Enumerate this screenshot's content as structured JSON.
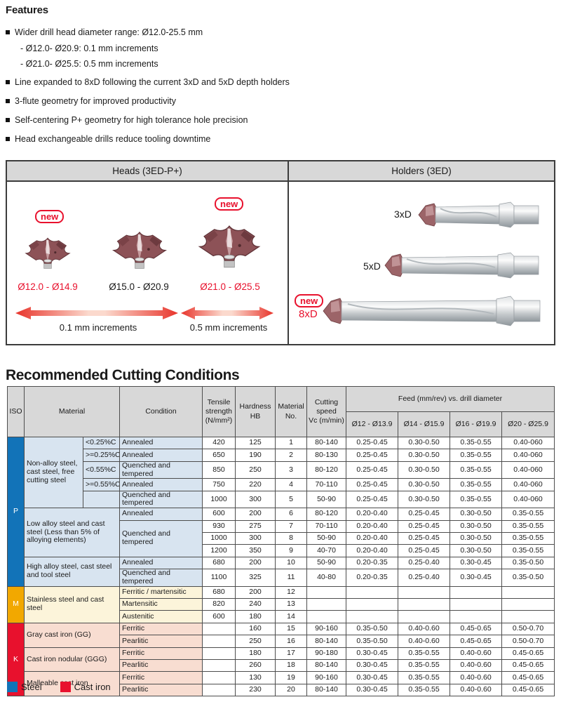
{
  "colors": {
    "accent_red": "#e8112d",
    "p_color": "#1273b8",
    "m_color": "#f2a800",
    "k_color": "#e8112d",
    "p_bg": "#d8e4f0",
    "m_bg": "#fcf4da",
    "k_bg": "#f8ddd1",
    "header_bg": "#d8d8d8"
  },
  "features": {
    "title": "Features",
    "items": [
      {
        "text": "Wider drill head diameter range: Ø12.0-25.5 mm",
        "subs": [
          "- Ø12.0- Ø20.9: 0.1 mm increments",
          "- Ø21.0- Ø25.5: 0.5 mm increments"
        ]
      },
      {
        "text": "Line expanded to 8xD following the current 3xD and 5xD depth holders",
        "subs": []
      },
      {
        "text": "3-flute geometry for improved productivity",
        "subs": []
      },
      {
        "text": "Self-centering P+ geometry for high tolerance hole precision",
        "subs": []
      },
      {
        "text": "Head exchangeable drills reduce tooling downtime",
        "subs": []
      }
    ]
  },
  "diagram": {
    "new_label": "new",
    "heads_panel": {
      "title": "Heads (3ED-P+)",
      "heads": [
        {
          "label": "Ø12.0 - Ø14.9",
          "red": true,
          "new": true
        },
        {
          "label": "Ø15.0 - Ø20.9",
          "red": false,
          "new": false
        },
        {
          "label": "Ø21.0 - Ø25.5",
          "red": true,
          "new": true
        }
      ],
      "arrows": [
        {
          "label": "0.1 mm increments"
        },
        {
          "label": "0.5 mm increments"
        }
      ]
    },
    "holders_panel": {
      "title": "Holders (3ED)",
      "holders": [
        {
          "label": "3xD",
          "new": false
        },
        {
          "label": "5xD",
          "new": false
        },
        {
          "label": "8xD",
          "new": true
        }
      ]
    }
  },
  "table": {
    "title": "Recommended Cutting Conditions",
    "headers": {
      "iso": "ISO",
      "material": "Material",
      "condition": "Condition",
      "tensile": "Tensile\nstrength\n(N/mm²)",
      "hardness": "Hardness\nHB",
      "material_no": "Material\nNo.",
      "cutting_speed": "Cutting\nspeed\nVc (m/min)",
      "feed_title": "Feed (mm/rev) vs. drill diameter"
    },
    "feed_cols": [
      "Ø12 - Ø13.9",
      "Ø14 - Ø15.9",
      "Ø16 - Ø19.9",
      "Ø20 - Ø25.9"
    ],
    "sections": [
      {
        "iso": "P",
        "cls": "p",
        "color": "#1273b8",
        "groups": [
          {
            "material": "Non-alloy steel, cast steel, free cutting steel",
            "sub": true,
            "rows": [
              {
                "c": "<0.25%C",
                "cond": "Annealed",
                "ts": "420",
                "hb": "125",
                "no": "1",
                "vc": "80-140",
                "feeds": [
                  "0.25-0.45",
                  "0.30-0.50",
                  "0.35-0.55",
                  "0.40-060"
                ]
              },
              {
                "c": ">=0.25%C",
                "cond": "Annealed",
                "ts": "650",
                "hb": "190",
                "no": "2",
                "vc": "80-130",
                "feeds": [
                  "0.25-0.45",
                  "0.30-0.50",
                  "0.35-0.55",
                  "0.40-060"
                ]
              },
              {
                "c": "<0.55%C",
                "cond": "Quenched and tempered",
                "ts": "850",
                "hb": "250",
                "no": "3",
                "vc": "80-120",
                "feeds": [
                  "0.25-0.45",
                  "0.30-0.50",
                  "0.35-0.55",
                  "0.40-060"
                ]
              },
              {
                "c": ">=0.55%C",
                "cond": "Annealed",
                "ts": "750",
                "hb": "220",
                "no": "4",
                "vc": "70-110",
                "feeds": [
                  "0.25-0.45",
                  "0.30-0.50",
                  "0.35-0.55",
                  "0.40-060"
                ]
              },
              {
                "c": "",
                "cond": "Quenched and tempered",
                "ts": "1000",
                "hb": "300",
                "no": "5",
                "vc": "50-90",
                "feeds": [
                  "0.25-0.45",
                  "0.30-0.50",
                  "0.35-0.55",
                  "0.40-060"
                ]
              }
            ]
          },
          {
            "material": "Low alloy steel and cast steel (Less than 5% of alloying elements)",
            "sub": false,
            "rows": [
              {
                "cond": "Annealed",
                "ts": "600",
                "hb": "200",
                "no": "6",
                "vc": "80-120",
                "feeds": [
                  "0.20-0.40",
                  "0.25-0.45",
                  "0.30-0.50",
                  "0.35-0.55"
                ]
              },
              {
                "cond": "Quenched and tempered",
                "cond_span": 3,
                "ts": "930",
                "hb": "275",
                "no": "7",
                "vc": "70-110",
                "feeds": [
                  "0.20-0.40",
                  "0.25-0.45",
                  "0.30-0.50",
                  "0.35-0.55"
                ]
              },
              {
                "cond": null,
                "ts": "1000",
                "hb": "300",
                "no": "8",
                "vc": "50-90",
                "feeds": [
                  "0.20-0.40",
                  "0.25-0.45",
                  "0.30-0.50",
                  "0.35-0.55"
                ]
              },
              {
                "cond": null,
                "ts": "1200",
                "hb": "350",
                "no": "9",
                "vc": "40-70",
                "feeds": [
                  "0.20-0.40",
                  "0.25-0.45",
                  "0.30-0.50",
                  "0.35-0.55"
                ]
              }
            ]
          },
          {
            "material": "High alloy steel, cast steel and tool steel",
            "sub": false,
            "rows": [
              {
                "cond": "Annealed",
                "ts": "680",
                "hb": "200",
                "no": "10",
                "vc": "50-90",
                "feeds": [
                  "0.20-0.35",
                  "0.25-0.40",
                  "0.30-0.45",
                  "0.35-0.50"
                ]
              },
              {
                "cond": "Quenched and tempered",
                "ts": "1100",
                "hb": "325",
                "no": "11",
                "vc": "40-80",
                "feeds": [
                  "0.20-0.35",
                  "0.25-0.40",
                  "0.30-0.45",
                  "0.35-0.50"
                ]
              }
            ]
          }
        ]
      },
      {
        "iso": "M",
        "cls": "m",
        "color": "#f2a800",
        "groups": [
          {
            "material": "Stainless steel and cast steel",
            "sub": false,
            "rows": [
              {
                "cond": "Ferritic / martensitic",
                "ts": "680",
                "hb": "200",
                "no": "12",
                "vc": "",
                "feeds": [
                  "",
                  "",
                  "",
                  ""
                ]
              },
              {
                "cond": "Martensitic",
                "ts": "820",
                "hb": "240",
                "no": "13",
                "vc": "",
                "feeds": [
                  "",
                  "",
                  "",
                  ""
                ]
              },
              {
                "cond": "Austenitic",
                "ts": "600",
                "hb": "180",
                "no": "14",
                "vc": "",
                "feeds": [
                  "",
                  "",
                  "",
                  ""
                ]
              }
            ]
          }
        ]
      },
      {
        "iso": "K",
        "cls": "k",
        "color": "#e8112d",
        "groups": [
          {
            "material": "Gray cast iron (GG)",
            "sub": false,
            "rows": [
              {
                "cond": "Ferritic",
                "ts": "",
                "hb": "160",
                "no": "15",
                "vc": "90-160",
                "feeds": [
                  "0.35-0.50",
                  "0.40-0.60",
                  "0.45-0.65",
                  "0.50-0.70"
                ]
              },
              {
                "cond": "Pearlitic",
                "ts": "",
                "hb": "250",
                "no": "16",
                "vc": "80-140",
                "feeds": [
                  "0.35-0.50",
                  "0.40-0.60",
                  "0.45-0.65",
                  "0.50-0.70"
                ]
              }
            ]
          },
          {
            "material": "Cast iron nodular (GGG)",
            "sub": false,
            "rows": [
              {
                "cond": "Ferritic",
                "ts": "",
                "hb": "180",
                "no": "17",
                "vc": "90-180",
                "feeds": [
                  "0.30-0.45",
                  "0.35-0.55",
                  "0.40-0.60",
                  "0.45-0.65"
                ]
              },
              {
                "cond": "Pearlitic",
                "ts": "",
                "hb": "260",
                "no": "18",
                "vc": "80-140",
                "feeds": [
                  "0.30-0.45",
                  "0.35-0.55",
                  "0.40-0.60",
                  "0.45-0.65"
                ]
              }
            ]
          },
          {
            "material": "Malleable cast iron",
            "sub": false,
            "rows": [
              {
                "cond": "Ferritic",
                "ts": "",
                "hb": "130",
                "no": "19",
                "vc": "90-160",
                "feeds": [
                  "0.30-0.45",
                  "0.35-0.55",
                  "0.40-0.60",
                  "0.45-0.65"
                ]
              },
              {
                "cond": "Pearlitic",
                "ts": "",
                "hb": "230",
                "no": "20",
                "vc": "80-140",
                "feeds": [
                  "0.30-0.45",
                  "0.35-0.55",
                  "0.40-0.60",
                  "0.45-0.65"
                ]
              }
            ]
          }
        ]
      }
    ]
  },
  "legend": {
    "items": [
      {
        "label": "Steel",
        "color": "#1273b8"
      },
      {
        "label": "Cast iron",
        "color": "#e8112d"
      }
    ]
  }
}
